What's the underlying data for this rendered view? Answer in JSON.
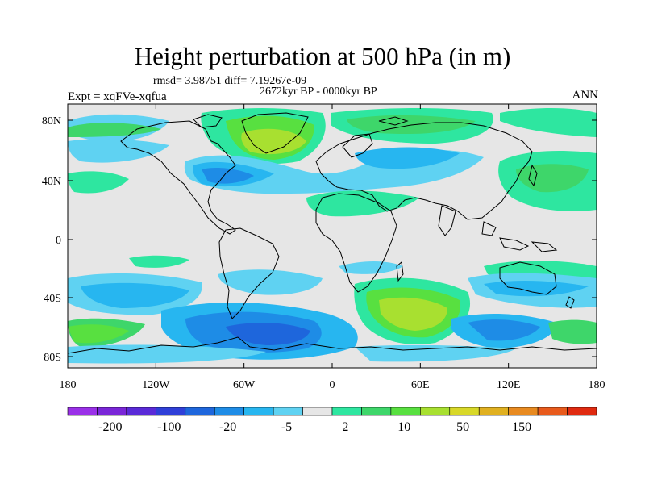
{
  "header": {
    "title": "Height perturbation at 500 hPa (in m)",
    "stats": "rmsd= 3.98751 diff= 7.19267e-09",
    "period": "2672kyr BP - 0000kyr BP",
    "left_label": "Expt = xqFVe-xqfua",
    "right_label": "ANN"
  },
  "map": {
    "lat_labels": [
      "80N",
      "40N",
      "0",
      "40S",
      "80S"
    ],
    "lon_labels": [
      "180",
      "120W",
      "60W",
      "0",
      "60E",
      "120E",
      "180"
    ],
    "land_fill": "#e6e6e6",
    "coastline_color": "#000000"
  },
  "colorbar": {
    "colors": [
      "#9a30e8",
      "#7a26d8",
      "#5a2ad8",
      "#2f3fd8",
      "#1e66dc",
      "#1e8ce6",
      "#27b6f0",
      "#5fd2f2",
      "#e6e6e6",
      "#2ee6a0",
      "#3ed66a",
      "#58e040",
      "#a8e030",
      "#d8d828",
      "#e0b020",
      "#e88a20",
      "#e85a1c",
      "#e02a10"
    ],
    "labels": [
      "-200",
      "-100",
      "-20",
      "-5",
      "2",
      "10",
      "50",
      "150"
    ]
  }
}
